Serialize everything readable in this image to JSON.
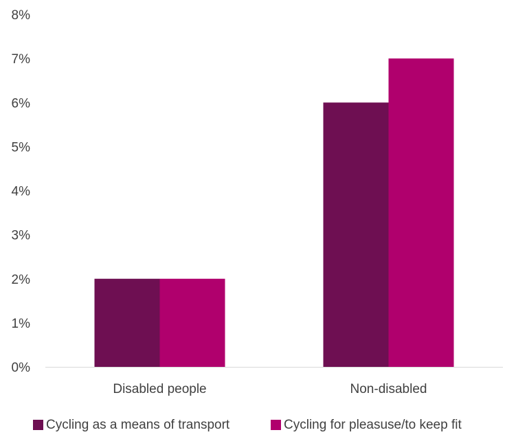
{
  "chart_data": {
    "type": "bar",
    "title": "",
    "xlabel": "",
    "ylabel": "",
    "categories": [
      "Disabled people",
      "Non-disabled"
    ],
    "series": [
      {
        "name": "Cycling as a means of transport",
        "values": [
          2,
          6
        ],
        "color": "#6e0f52"
      },
      {
        "name": "Cycling for pleasuse/to keep fit",
        "values": [
          2,
          7
        ],
        "color": "#b0006d"
      }
    ],
    "ylim": [
      0,
      8
    ],
    "yticks": [
      "0%",
      "1%",
      "2%",
      "3%",
      "4%",
      "5%",
      "6%",
      "7%",
      "8%"
    ],
    "grid": false,
    "legend_position": "bottom",
    "axis_color": "#d9d9d9",
    "text_color": "#404040"
  }
}
